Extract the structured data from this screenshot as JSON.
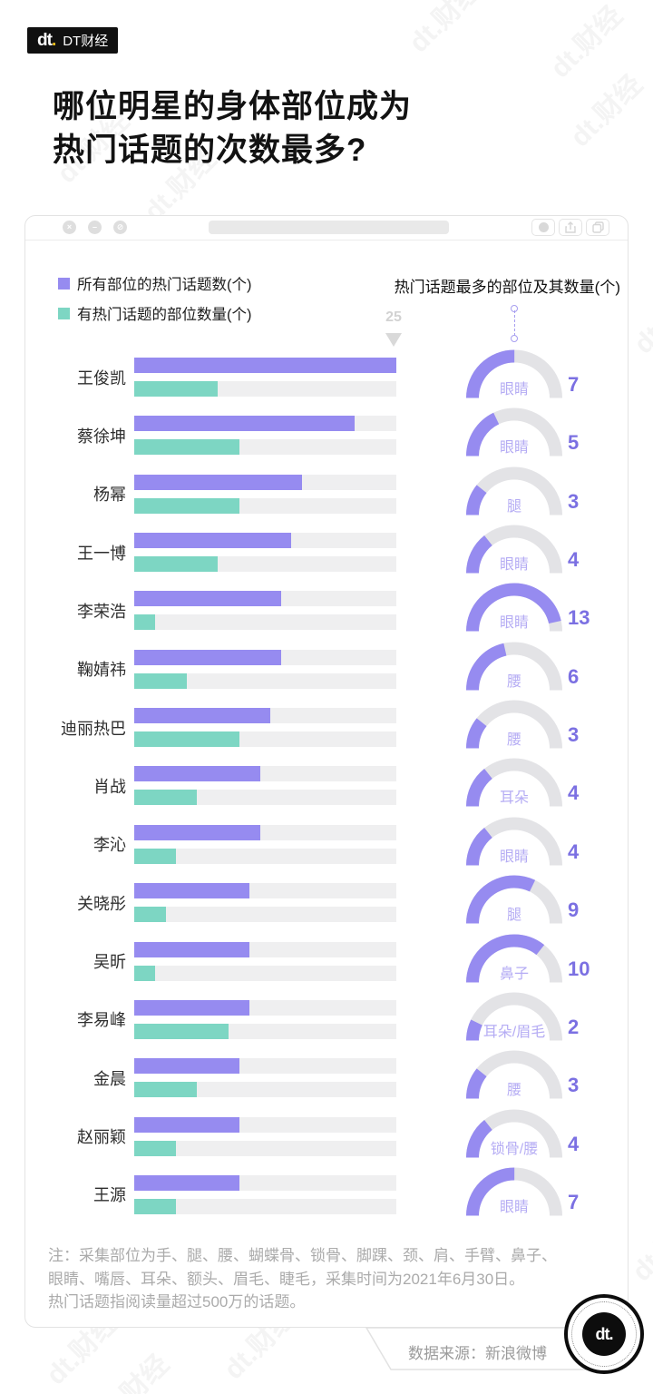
{
  "page": {
    "brand": {
      "logo_mark": "dt",
      "logo_dot": ".",
      "logo_name": "DT财经"
    },
    "title_lines": [
      "哪位明星的身体部位成为",
      "热门话题的次数最多?"
    ],
    "watermark_text": "dt.财经"
  },
  "window": {
    "controls": [
      "×",
      "–",
      "⊘"
    ],
    "buttons": [
      "record-button",
      "share-button",
      "tabs-button"
    ]
  },
  "legend": [
    {
      "label": "所有部位的热门话题数(个)",
      "color": "#968bf0"
    },
    {
      "label": "有热门话题的部位数量(个)",
      "color": "#7dd6c3"
    }
  ],
  "right_header": "热门话题最多的部位及其数量(个)",
  "axis_marker": {
    "value": "25"
  },
  "colors": {
    "topics_bar": "#968bf0",
    "parts_bar": "#7dd6c3",
    "bar_track": "#efeff0",
    "gauge_track": "#e3e3e6",
    "gauge_fill": "#968bf0",
    "gauge_number": "#7b70e2",
    "gauge_label": "#b5acf4",
    "brand_yellow": "#f6c21c"
  },
  "chart_data": {
    "type": "bar",
    "orientation": "horizontal",
    "xlim": [
      0,
      25
    ],
    "axis_marker_value": 25,
    "categories": [
      "王俊凯",
      "蔡徐坤",
      "杨幂",
      "王一博",
      "李荣浩",
      "鞠婧祎",
      "迪丽热巴",
      "肖战",
      "李沁",
      "关晓彤",
      "吴昕",
      "李易峰",
      "金晨",
      "赵丽颖",
      "王源"
    ],
    "series": [
      {
        "name": "所有部位的热门话题数(个)",
        "color": "#968bf0",
        "values": [
          25,
          21,
          16,
          15,
          14,
          14,
          13,
          12,
          12,
          11,
          11,
          11,
          10,
          10,
          10
        ]
      },
      {
        "name": "有热门话题的部位数量(个)",
        "color": "#7dd6c3",
        "values": [
          8,
          10,
          10,
          8,
          2,
          5,
          10,
          6,
          4,
          3,
          2,
          9,
          6,
          4,
          4
        ]
      }
    ],
    "gauges": [
      {
        "part": "眼睛",
        "value": 7
      },
      {
        "part": "眼睛",
        "value": 5
      },
      {
        "part": "腿",
        "value": 3
      },
      {
        "part": "眼睛",
        "value": 4
      },
      {
        "part": "眼睛",
        "value": 13
      },
      {
        "part": "腰",
        "value": 6
      },
      {
        "part": "腰",
        "value": 3
      },
      {
        "part": "耳朵",
        "value": 4
      },
      {
        "part": "眼睛",
        "value": 4
      },
      {
        "part": "腿",
        "value": 9
      },
      {
        "part": "鼻子",
        "value": 10
      },
      {
        "part": "耳朵/眉毛",
        "value": 2
      },
      {
        "part": "腰",
        "value": 3
      },
      {
        "part": "锁骨/腰",
        "value": 4
      },
      {
        "part": "眼睛",
        "value": 7
      }
    ],
    "gauge_max": 14
  },
  "footer": {
    "note_lines": [
      "注：采集部位为手、腿、腰、蝴蝶骨、锁骨、脚踝、颈、肩、手臂、鼻子、",
      "眼睛、嘴唇、耳朵、额头、眉毛、睫毛，采集时间为2021年6月30日。",
      "热门话题指阅读量超过500万的话题。"
    ],
    "source_label": "数据来源：新浪微博"
  }
}
